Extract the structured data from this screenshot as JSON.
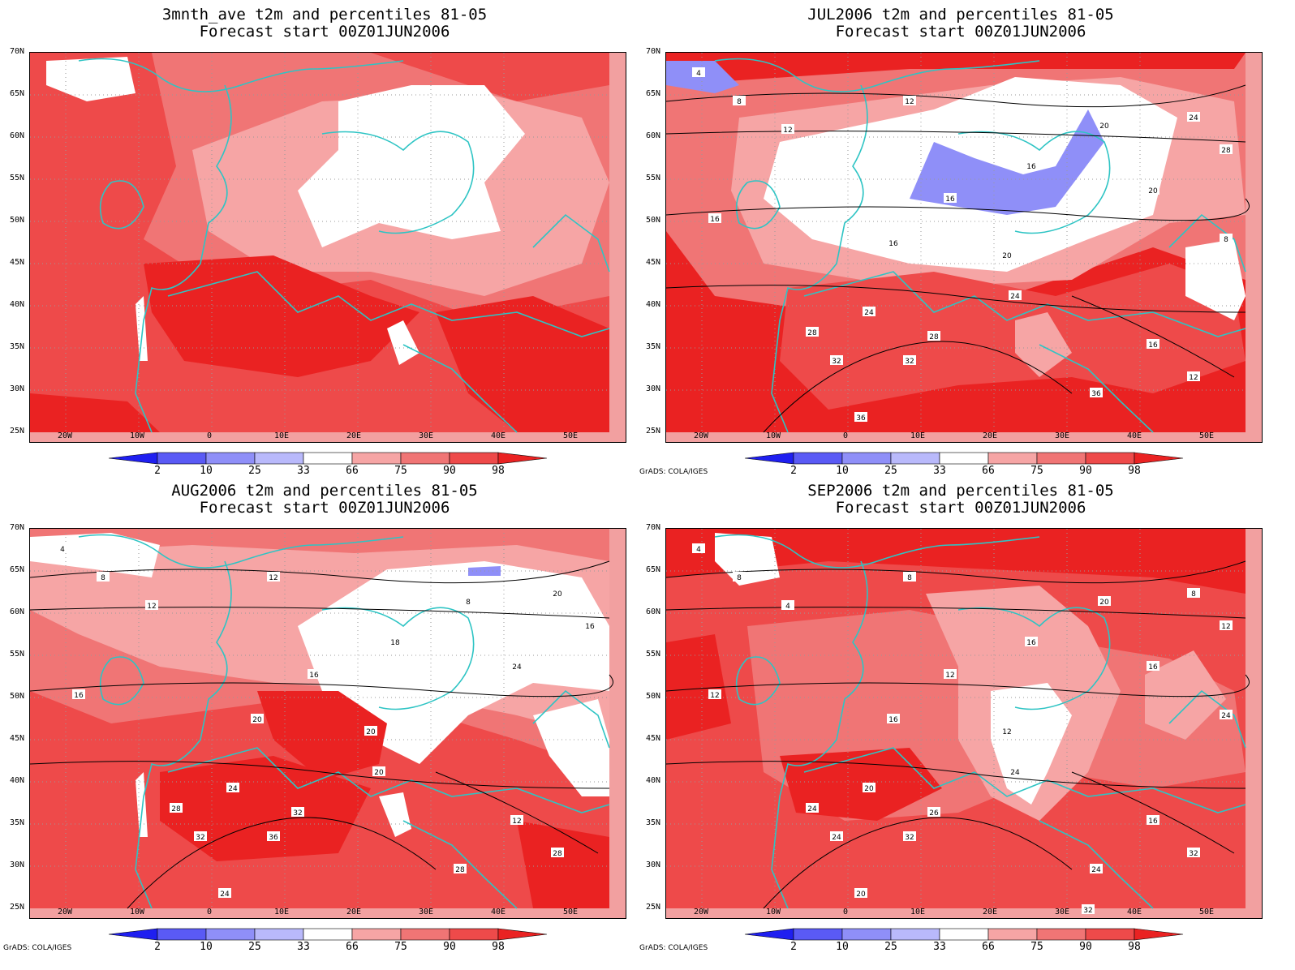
{
  "panels": [
    {
      "title_line1": "3mnth_ave t2m and percentiles 81-05",
      "title_line2": "Forecast start 00Z01JUN2006",
      "credit": "",
      "contour_labels": []
    },
    {
      "title_line1": "JUL2006 t2m and percentiles 81-05",
      "title_line2": "Forecast start 00Z01JUN2006",
      "credit": "GrADS: COLA/IGES",
      "contour_labels": [
        "4",
        "8",
        "12",
        "12",
        "16",
        "16",
        "16",
        "16",
        "20",
        "20",
        "24",
        "24",
        "28",
        "28",
        "32",
        "32",
        "36",
        "36",
        "12",
        "16",
        "20",
        "24",
        "28",
        "8"
      ]
    },
    {
      "title_line1": "AUG2006 t2m and percentiles 81-05",
      "title_line2": "Forecast start 00Z01JUN2006",
      "credit": "GrADS: COLA/IGES",
      "contour_labels": [
        "4",
        "8",
        "12",
        "12",
        "16",
        "16",
        "18",
        "20",
        "20",
        "24",
        "24",
        "20",
        "28",
        "32",
        "32",
        "36",
        "24",
        "28",
        "28",
        "12",
        "8",
        "20",
        "16"
      ]
    },
    {
      "title_line1": "SEP2006 t2m and percentiles 81-05",
      "title_line2": "Forecast start 00Z01JUN2006",
      "credit": "GrADS: COLA/IGES",
      "contour_labels": [
        "4",
        "8",
        "4",
        "8",
        "12",
        "12",
        "16",
        "16",
        "12",
        "16",
        "20",
        "24",
        "24",
        "26",
        "24",
        "32",
        "20",
        "24",
        "32",
        "16",
        "20",
        "8",
        "12",
        "24",
        "32"
      ]
    }
  ],
  "map": {
    "y_labels": [
      "70N",
      "65N",
      "60N",
      "55N",
      "50N",
      "45N",
      "40N",
      "35N",
      "30N",
      "25N"
    ],
    "x_labels": [
      "20W",
      "10W",
      "0",
      "10E",
      "20E",
      "30E",
      "40E",
      "50E"
    ]
  },
  "colorbar": {
    "labels": [
      "2",
      "10",
      "25",
      "33",
      "66",
      "75",
      "90",
      "98"
    ],
    "colors": [
      "#1f1ff0",
      "#5a5af5",
      "#8f8ff8",
      "#b9b9fb",
      "#ffffff",
      "#f6a5a5",
      "#f07575",
      "#ee4a4a",
      "#ea2222"
    ]
  }
}
